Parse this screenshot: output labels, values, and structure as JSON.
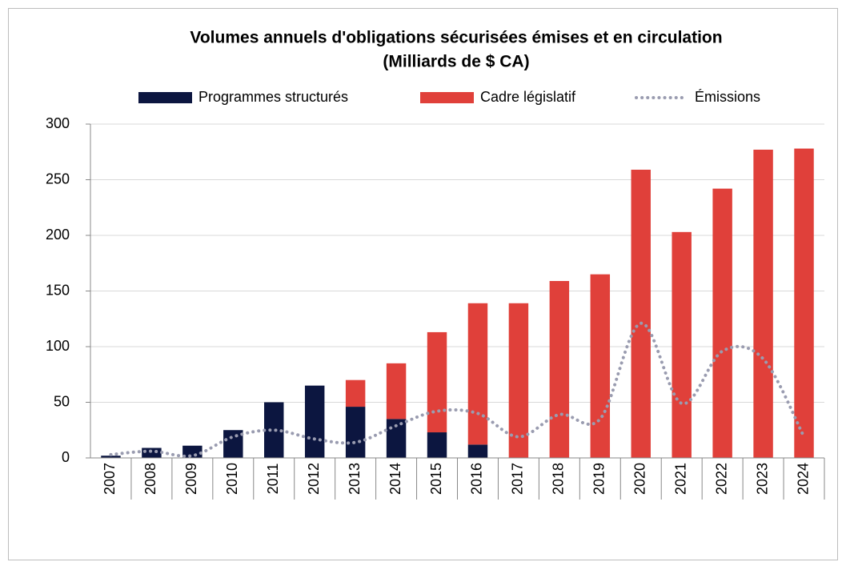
{
  "chart_data": {
    "type": "stacked_bar_line",
    "title": "Volumes annuels d'obligations sécurisées émises et en circulation",
    "subtitle": "(Milliards de $ CA)",
    "categories": [
      "2007",
      "2008",
      "2009",
      "2010",
      "2011",
      "2012",
      "2013",
      "2014",
      "2015",
      "2016",
      "2017",
      "2018",
      "2019",
      "2020",
      "2021",
      "2022",
      "2023",
      "2024"
    ],
    "series": [
      {
        "name": "Programmes structurés",
        "color": "#0c1640",
        "type": "bar",
        "values": [
          2,
          9,
          11,
          25,
          50,
          65,
          46,
          35,
          23,
          12,
          0,
          0,
          0,
          0,
          0,
          0,
          0,
          0
        ]
      },
      {
        "name": "Cadre législatif",
        "color": "#e0403a",
        "type": "bar",
        "values": [
          0,
          0,
          0,
          0,
          0,
          0,
          24,
          50,
          90,
          127,
          139,
          159,
          165,
          259,
          203,
          242,
          277,
          278
        ]
      },
      {
        "name": "Émissions",
        "color": "#9a9cb0",
        "type": "line",
        "values": [
          3,
          6,
          2,
          19,
          25,
          17,
          14,
          29,
          42,
          40,
          19,
          39,
          35,
          121,
          49,
          96,
          89,
          19
        ]
      }
    ],
    "ylim": [
      0,
      300
    ],
    "yticks": [
      0,
      50,
      100,
      150,
      200,
      250,
      300
    ],
    "grid": true,
    "legend": "top"
  }
}
